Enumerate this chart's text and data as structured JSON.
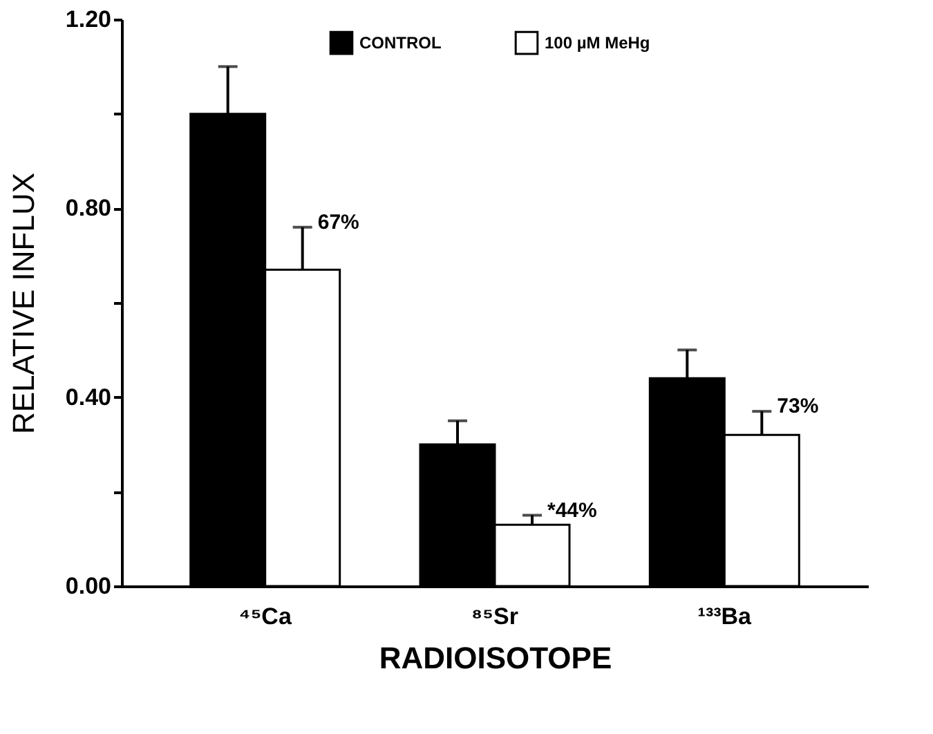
{
  "chart_data": {
    "type": "bar",
    "xlabel": "RADIOISOTOPE",
    "ylabel": "RELATIVE  INFLUX",
    "categories": [
      "⁴⁵Ca",
      "⁸⁵Sr",
      "¹³³Ba"
    ],
    "series": [
      {
        "name": "CONTROL",
        "color": "#000000",
        "values": [
          1.0,
          0.3,
          0.44
        ],
        "errors": [
          [
            1.0,
            1.1
          ],
          [
            0.3,
            0.35
          ],
          [
            0.44,
            0.5
          ]
        ]
      },
      {
        "name": "100 µM MeHg",
        "color": "#ffffff",
        "values": [
          0.67,
          0.13,
          0.32
        ],
        "errors": [
          [
            0.67,
            0.76
          ],
          [
            0.13,
            0.15
          ],
          [
            0.32,
            0.37
          ]
        ]
      }
    ],
    "ylim": [
      0,
      1.2
    ],
    "yticks": [
      {
        "value": 0,
        "label": "0.00"
      },
      {
        "value": 0.2,
        "label": null
      },
      {
        "value": 0.4,
        "label": "0.40"
      },
      {
        "value": 0.6,
        "label": null
      },
      {
        "value": 0.8,
        "label": "0.80"
      },
      {
        "value": 1.0,
        "label": null
      },
      {
        "value": 1.2,
        "label": "1.20"
      }
    ],
    "annotations": [
      {
        "text": "67%",
        "x": "⁴⁵Ca",
        "y": 0.76
      },
      {
        "text": "*44%",
        "x": "⁸⁵Sr",
        "y": 0.15
      },
      {
        "text": "73%",
        "x": "¹³³Ba",
        "y": 0.37
      }
    ],
    "legend": "top",
    "grid": false
  }
}
